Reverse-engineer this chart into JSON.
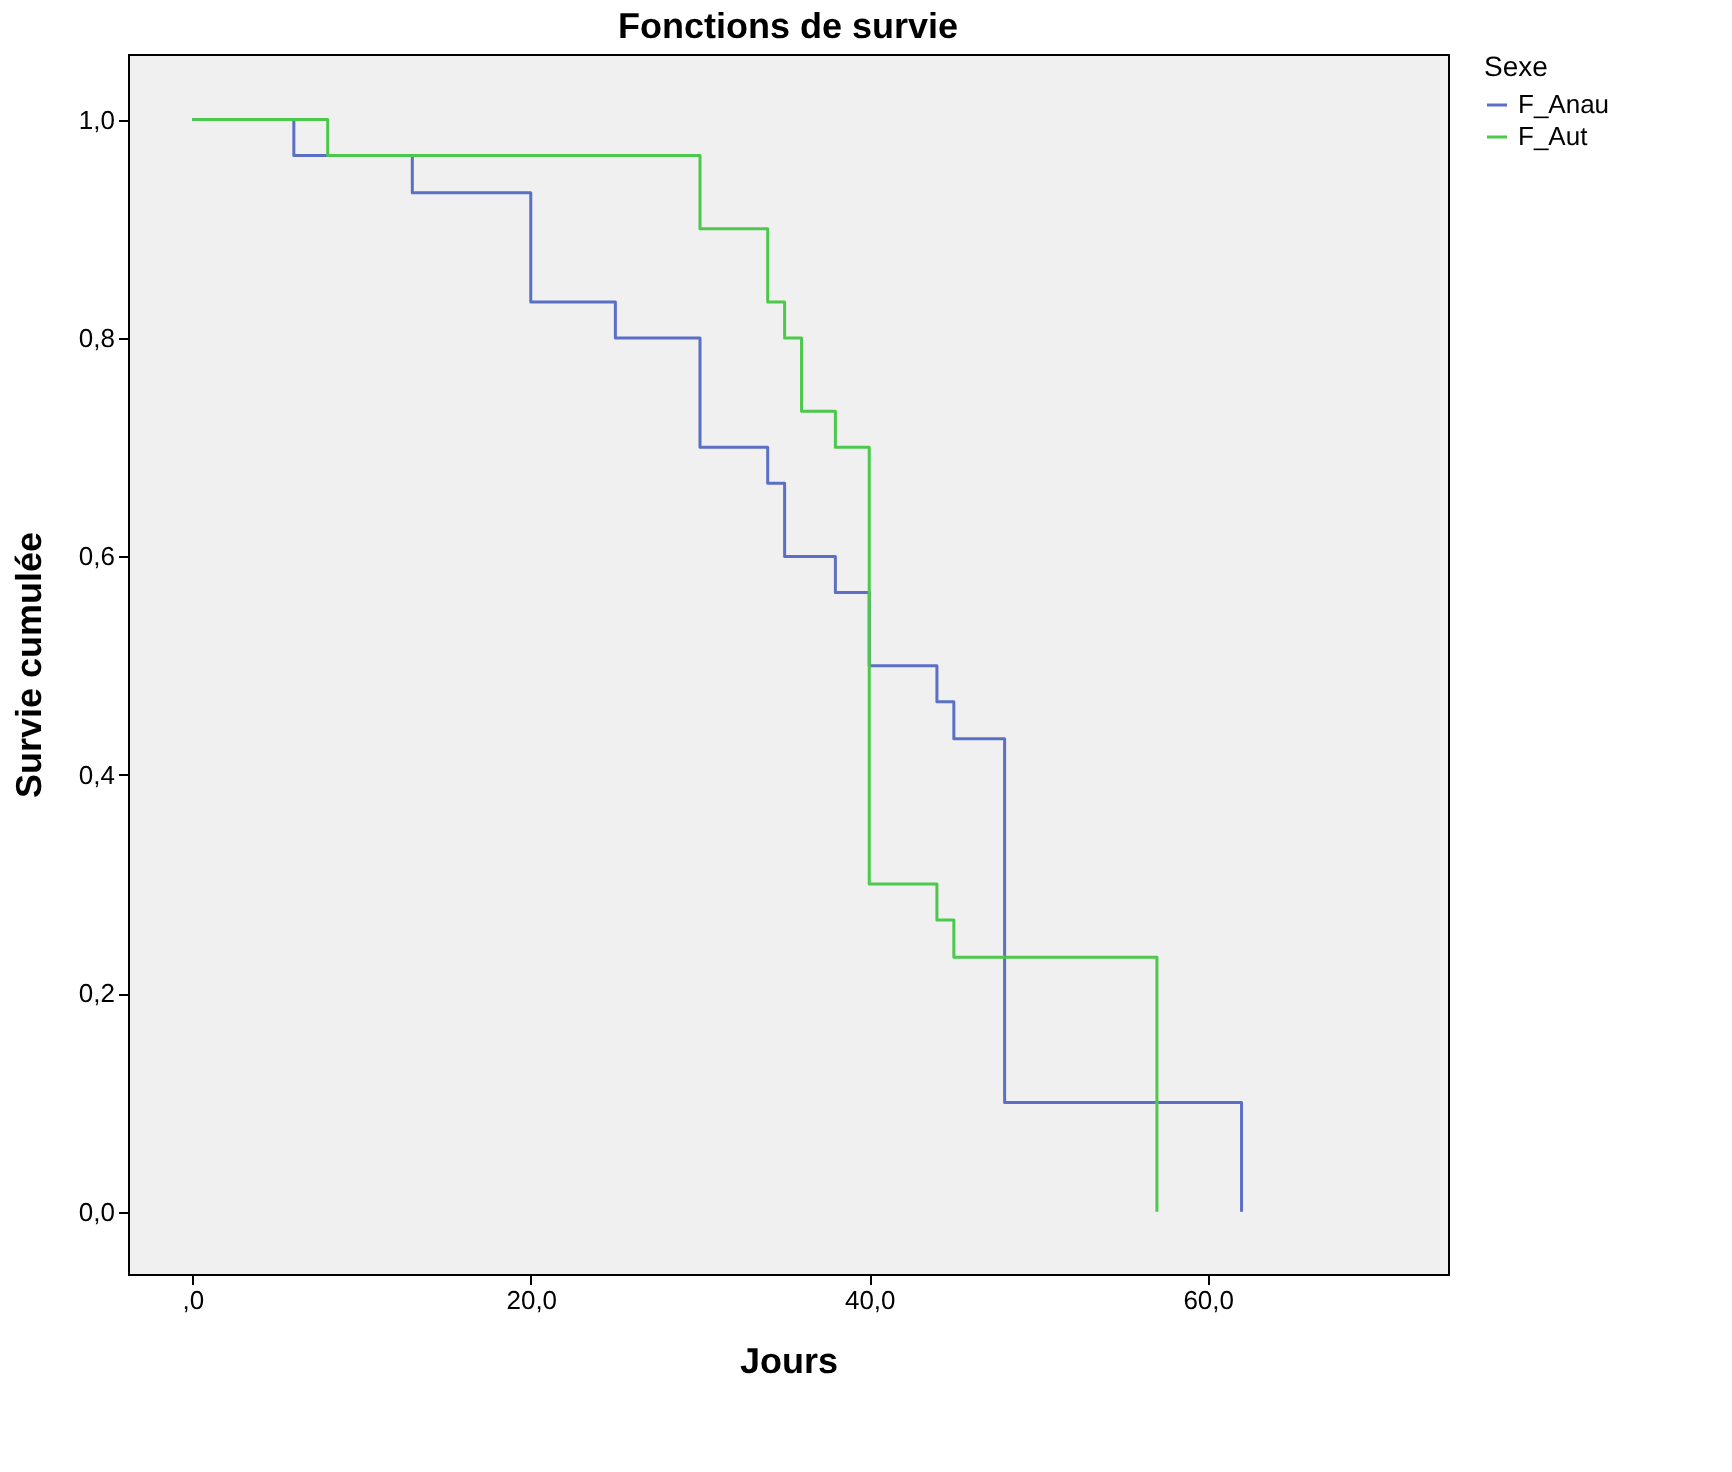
{
  "chart_data": {
    "type": "step",
    "title": "Fonctions de survie",
    "xlabel": "Jours",
    "ylabel": "Survie cumulée",
    "legend_title": "Sexe",
    "legend": "top right",
    "grid": false,
    "xlim": [
      -3.8,
      74.2
    ],
    "ylim": [
      -0.057,
      1.06
    ],
    "xticks": [
      {
        "value": 0,
        "label": ",0"
      },
      {
        "value": 20,
        "label": "20,0"
      },
      {
        "value": 40,
        "label": "40,0"
      },
      {
        "value": 60,
        "label": "60,0"
      }
    ],
    "yticks": [
      {
        "value": 0,
        "label": "0,0"
      },
      {
        "value": 0.2,
        "label": "0,2"
      },
      {
        "value": 0.4,
        "label": "0,4"
      },
      {
        "value": 0.6,
        "label": "0,6"
      },
      {
        "value": 0.8,
        "label": "0,8"
      },
      {
        "value": 1,
        "label": "1,0"
      }
    ],
    "series": [
      {
        "name": "F_Anau",
        "color": "#5b6fc4",
        "x": [
          0,
          6,
          13,
          20,
          25,
          30,
          34,
          35,
          38,
          40,
          44,
          45,
          48,
          62
        ],
        "values": [
          1,
          0.967,
          0.933,
          0.833,
          0.8,
          0.7,
          0.667,
          0.6,
          0.567,
          0.5,
          0.467,
          0.433,
          0.1,
          0
        ]
      },
      {
        "name": "F_Aut",
        "color": "#4cc84c",
        "x": [
          0,
          8,
          30,
          34,
          35,
          36,
          38,
          40,
          44,
          45,
          57
        ],
        "values": [
          1,
          0.967,
          0.9,
          0.833,
          0.8,
          0.733,
          0.7,
          0.3,
          0.267,
          0.233,
          0
        ]
      }
    ]
  }
}
